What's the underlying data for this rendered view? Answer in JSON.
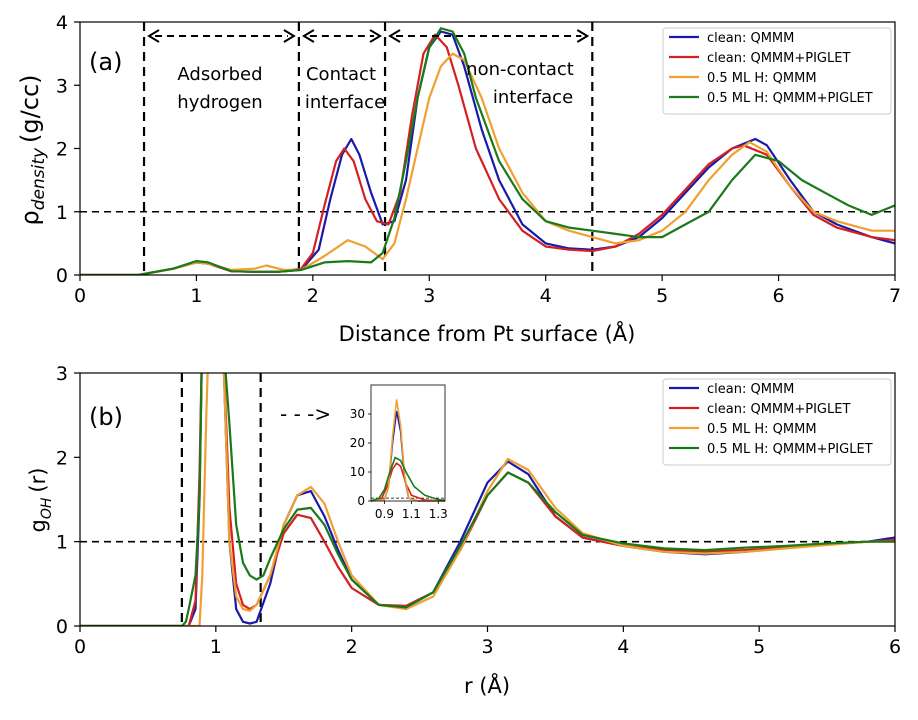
{
  "colors": {
    "clean_qmmm": "#1a1aaa",
    "clean_piglet": "#d42020",
    "h_qmmm": "#f0a030",
    "h_piglet": "#1a7a1a"
  },
  "legend_labels": [
    "clean: QMMM",
    "clean: QMMM+PIGLET",
    "0.5 ML H: QMMM",
    "0.5 ML H: QMMM+PIGLET"
  ],
  "chart_data": [
    {
      "type": "line",
      "panel_label": "(a)",
      "xlabel": "Distance from Pt surface (Å)",
      "ylabel": "ρ",
      "ylabel_sub": "density",
      "ylabel_unit": "(g/cc)",
      "xlim": [
        0,
        7
      ],
      "ylim": [
        0,
        4
      ],
      "xticks": [
        "0",
        "1",
        "2",
        "3",
        "4",
        "5",
        "6",
        "7"
      ],
      "yticks": [
        "0",
        "1",
        "2",
        "3",
        "4"
      ],
      "reference_line_y": 1,
      "region_boundaries_x": [
        0.55,
        1.88,
        2.62,
        4.4
      ],
      "region_labels": [
        {
          "lines": [
            "Adsorbed",
            "hydrogen"
          ],
          "x": 1.2
        },
        {
          "lines": [
            "Contact",
            "interface"
          ],
          "x": 2.25
        },
        {
          "lines": [
            "non-contact",
            "interface"
          ],
          "x": 3.6
        }
      ],
      "series": [
        {
          "name": "clean: QMMM",
          "color_key": "clean_qmmm",
          "x": [
            0,
            0.5,
            0.8,
            1.0,
            1.1,
            1.3,
            1.5,
            1.7,
            1.9,
            2.05,
            2.15,
            2.25,
            2.33,
            2.4,
            2.5,
            2.6,
            2.7,
            2.8,
            2.9,
            3.0,
            3.1,
            3.2,
            3.3,
            3.45,
            3.6,
            3.8,
            4.0,
            4.2,
            4.4,
            4.6,
            4.8,
            5.0,
            5.2,
            5.4,
            5.6,
            5.8,
            5.9,
            6.1,
            6.3,
            6.5,
            6.8,
            7.0
          ],
          "y": [
            0,
            0,
            0.1,
            0.2,
            0.18,
            0.06,
            0.05,
            0.05,
            0.08,
            0.4,
            1.2,
            1.9,
            2.15,
            1.9,
            1.3,
            0.8,
            0.85,
            1.5,
            2.8,
            3.6,
            3.85,
            3.8,
            3.3,
            2.3,
            1.5,
            0.8,
            0.5,
            0.42,
            0.4,
            0.45,
            0.6,
            0.9,
            1.3,
            1.7,
            2.0,
            2.15,
            2.05,
            1.5,
            1.0,
            0.8,
            0.6,
            0.5
          ]
        },
        {
          "name": "clean: QMMM+PIGLET",
          "color_key": "clean_piglet",
          "x": [
            0,
            0.5,
            0.8,
            1.0,
            1.1,
            1.3,
            1.5,
            1.7,
            1.9,
            2.0,
            2.1,
            2.2,
            2.27,
            2.35,
            2.45,
            2.55,
            2.65,
            2.75,
            2.85,
            2.95,
            3.05,
            3.15,
            3.25,
            3.4,
            3.6,
            3.8,
            4.0,
            4.2,
            4.4,
            4.6,
            4.8,
            5.0,
            5.2,
            5.4,
            5.6,
            5.7,
            5.9,
            6.1,
            6.3,
            6.5,
            6.8,
            7.0
          ],
          "y": [
            0,
            0,
            0.1,
            0.2,
            0.18,
            0.06,
            0.05,
            0.05,
            0.1,
            0.35,
            1.1,
            1.8,
            2.0,
            1.8,
            1.2,
            0.85,
            0.8,
            1.3,
            2.5,
            3.5,
            3.8,
            3.6,
            3.0,
            2.0,
            1.2,
            0.7,
            0.45,
            0.4,
            0.38,
            0.45,
            0.65,
            0.95,
            1.35,
            1.75,
            2.0,
            2.05,
            1.9,
            1.4,
            0.95,
            0.75,
            0.6,
            0.55
          ]
        },
        {
          "name": "0.5 ML H: QMMM",
          "color_key": "h_qmmm",
          "x": [
            0,
            0.5,
            0.8,
            1.0,
            1.1,
            1.3,
            1.5,
            1.6,
            1.75,
            1.9,
            2.1,
            2.3,
            2.45,
            2.6,
            2.7,
            2.8,
            2.9,
            3.0,
            3.1,
            3.2,
            3.3,
            3.45,
            3.6,
            3.8,
            4.0,
            4.2,
            4.4,
            4.6,
            4.8,
            5.0,
            5.2,
            5.4,
            5.6,
            5.75,
            5.9,
            6.1,
            6.3,
            6.5,
            6.8,
            7.0
          ],
          "y": [
            0,
            0,
            0.1,
            0.2,
            0.18,
            0.08,
            0.1,
            0.15,
            0.08,
            0.08,
            0.3,
            0.55,
            0.45,
            0.25,
            0.5,
            1.2,
            2.0,
            2.8,
            3.3,
            3.5,
            3.4,
            2.8,
            2.0,
            1.3,
            0.85,
            0.7,
            0.6,
            0.5,
            0.55,
            0.7,
            1.0,
            1.5,
            1.9,
            2.1,
            1.95,
            1.4,
            1.0,
            0.85,
            0.7,
            0.7
          ]
        },
        {
          "name": "0.5 ML H: QMMM+PIGLET",
          "color_key": "h_piglet",
          "x": [
            0,
            0.5,
            0.8,
            1.0,
            1.1,
            1.3,
            1.5,
            1.7,
            1.9,
            2.1,
            2.3,
            2.5,
            2.6,
            2.7,
            2.8,
            2.9,
            3.0,
            3.1,
            3.2,
            3.3,
            3.4,
            3.6,
            3.8,
            4.0,
            4.2,
            4.4,
            4.6,
            4.8,
            5.0,
            5.2,
            5.4,
            5.6,
            5.8,
            6.0,
            6.2,
            6.4,
            6.6,
            6.8,
            7.0
          ],
          "y": [
            0,
            0,
            0.1,
            0.22,
            0.2,
            0.06,
            0.05,
            0.05,
            0.08,
            0.2,
            0.22,
            0.2,
            0.35,
            0.9,
            1.8,
            2.8,
            3.6,
            3.9,
            3.85,
            3.5,
            2.8,
            1.8,
            1.2,
            0.85,
            0.75,
            0.7,
            0.65,
            0.6,
            0.6,
            0.8,
            1.0,
            1.5,
            1.9,
            1.8,
            1.5,
            1.3,
            1.1,
            0.95,
            1.1
          ]
        }
      ]
    },
    {
      "type": "line",
      "panel_label": "(b)",
      "xlabel": "r (Å)",
      "ylabel": "g",
      "ylabel_sub": "OH",
      "ylabel_unit": "(r)",
      "xlim": [
        0,
        6
      ],
      "ylim": [
        0,
        3
      ],
      "xticks": [
        "0",
        "1",
        "2",
        "3",
        "4",
        "5",
        "6"
      ],
      "yticks": [
        "0",
        "1",
        "2",
        "3"
      ],
      "reference_line_y": 1,
      "region_boundaries_x": [
        0.75,
        1.33
      ],
      "arrow": "- - ->",
      "series": [
        {
          "name": "clean: QMMM",
          "color_key": "clean_qmmm",
          "x": [
            0,
            0.8,
            0.85,
            0.88,
            0.9,
            0.95,
            1.05,
            1.1,
            1.15,
            1.2,
            1.25,
            1.3,
            1.4,
            1.5,
            1.6,
            1.7,
            1.8,
            1.9,
            2.0,
            2.2,
            2.4,
            2.6,
            2.8,
            3.0,
            3.15,
            3.3,
            3.5,
            3.7,
            4.0,
            4.3,
            4.6,
            4.9,
            5.2,
            5.5,
            5.8,
            6.0
          ],
          "y": [
            0,
            0,
            0.2,
            1.5,
            3.5,
            3.5,
            3.5,
            1.0,
            0.2,
            0.05,
            0.03,
            0.05,
            0.5,
            1.2,
            1.55,
            1.6,
            1.3,
            0.9,
            0.55,
            0.25,
            0.22,
            0.4,
            1.0,
            1.7,
            1.95,
            1.8,
            1.3,
            1.05,
            0.95,
            0.88,
            0.85,
            0.88,
            0.93,
            0.97,
            1.0,
            1.05
          ]
        },
        {
          "name": "clean: QMMM+PIGLET",
          "color_key": "clean_piglet",
          "x": [
            0,
            0.8,
            0.85,
            0.88,
            0.9,
            0.95,
            1.05,
            1.1,
            1.15,
            1.2,
            1.25,
            1.3,
            1.4,
            1.5,
            1.6,
            1.7,
            1.8,
            1.9,
            2.0,
            2.2,
            2.4,
            2.6,
            2.8,
            3.0,
            3.15,
            3.3,
            3.5,
            3.7,
            4.0,
            4.3,
            4.6,
            4.9,
            5.2,
            5.5,
            5.8,
            6.0
          ],
          "y": [
            0,
            0,
            0.3,
            1.8,
            3.5,
            3.5,
            3.5,
            1.4,
            0.5,
            0.25,
            0.2,
            0.25,
            0.6,
            1.1,
            1.32,
            1.28,
            1.0,
            0.7,
            0.45,
            0.25,
            0.24,
            0.4,
            0.9,
            1.55,
            1.82,
            1.7,
            1.3,
            1.05,
            0.95,
            0.9,
            0.88,
            0.9,
            0.93,
            0.97,
            1.0,
            1.02
          ]
        },
        {
          "name": "0.5 ML H: QMMM",
          "color_key": "h_qmmm",
          "x": [
            0,
            0.85,
            0.88,
            0.9,
            0.93,
            0.95,
            1.05,
            1.1,
            1.15,
            1.2,
            1.25,
            1.3,
            1.4,
            1.5,
            1.6,
            1.7,
            1.8,
            1.9,
            2.0,
            2.2,
            2.4,
            2.6,
            2.8,
            3.0,
            3.15,
            3.3,
            3.5,
            3.7,
            4.0,
            4.3,
            4.6,
            4.9,
            5.2,
            5.5,
            5.8,
            6.0
          ],
          "y": [
            0,
            0,
            0,
            0.6,
            2.5,
            3.5,
            3.5,
            1.0,
            0.35,
            0.2,
            0.18,
            0.25,
            0.6,
            1.2,
            1.55,
            1.65,
            1.45,
            1.0,
            0.6,
            0.25,
            0.2,
            0.35,
            0.9,
            1.6,
            1.98,
            1.85,
            1.4,
            1.1,
            0.95,
            0.88,
            0.86,
            0.88,
            0.92,
            0.96,
            1.0,
            1.0
          ]
        },
        {
          "name": "0.5 ML H: QMMM+PIGLET",
          "color_key": "h_piglet",
          "x": [
            0,
            0.75,
            0.78,
            0.8,
            0.85,
            0.88,
            0.9,
            0.95,
            1.05,
            1.1,
            1.15,
            1.2,
            1.25,
            1.3,
            1.35,
            1.4,
            1.5,
            1.6,
            1.7,
            1.8,
            1.9,
            2.0,
            2.2,
            2.4,
            2.6,
            2.8,
            3.0,
            3.15,
            3.3,
            3.5,
            3.7,
            4.0,
            4.3,
            4.6,
            4.9,
            5.2,
            5.5,
            5.8,
            6.0
          ],
          "y": [
            0,
            0,
            0.05,
            0.2,
            0.6,
            1.5,
            3.5,
            3.5,
            3.5,
            2.4,
            1.2,
            0.75,
            0.6,
            0.55,
            0.6,
            0.8,
            1.15,
            1.38,
            1.4,
            1.2,
            0.85,
            0.55,
            0.25,
            0.22,
            0.4,
            0.95,
            1.55,
            1.82,
            1.7,
            1.35,
            1.08,
            0.98,
            0.92,
            0.9,
            0.93,
            0.95,
            0.98,
            1.0,
            1.0
          ]
        }
      ],
      "inset": {
        "xlim": [
          0.8,
          1.35
        ],
        "ylim": [
          0,
          40
        ],
        "xticks": [
          "0.9",
          "1.1",
          "1.3"
        ],
        "yticks": [
          "0",
          "10",
          "20",
          "30"
        ],
        "series": [
          {
            "color_key": "clean_qmmm",
            "x": [
              0.8,
              0.9,
              0.93,
              0.96,
              0.99,
              1.02,
              1.05,
              1.08,
              1.15,
              1.35
            ],
            "y": [
              0,
              0.5,
              5,
              20,
              31,
              24,
              8,
              1,
              0,
              0
            ]
          },
          {
            "color_key": "clean_piglet",
            "x": [
              0.8,
              0.88,
              0.92,
              0.96,
              0.99,
              1.02,
              1.06,
              1.1,
              1.2,
              1.35
            ],
            "y": [
              0,
              1,
              5,
              11,
              13,
              12,
              6,
              2,
              0.3,
              0
            ]
          },
          {
            "color_key": "h_qmmm",
            "x": [
              0.8,
              0.9,
              0.93,
              0.96,
              0.99,
              1.02,
              1.05,
              1.08,
              1.15,
              1.35
            ],
            "y": [
              0,
              0.5,
              5,
              22,
              35,
              26,
              9,
              1,
              0,
              0
            ]
          },
          {
            "color_key": "h_piglet",
            "x": [
              0.8,
              0.86,
              0.9,
              0.94,
              0.98,
              1.02,
              1.06,
              1.12,
              1.2,
              1.3,
              1.35
            ],
            "y": [
              0,
              1,
              4,
              10,
              15,
              14,
              10,
              5,
              2,
              0.5,
              0.2
            ]
          }
        ]
      }
    }
  ]
}
